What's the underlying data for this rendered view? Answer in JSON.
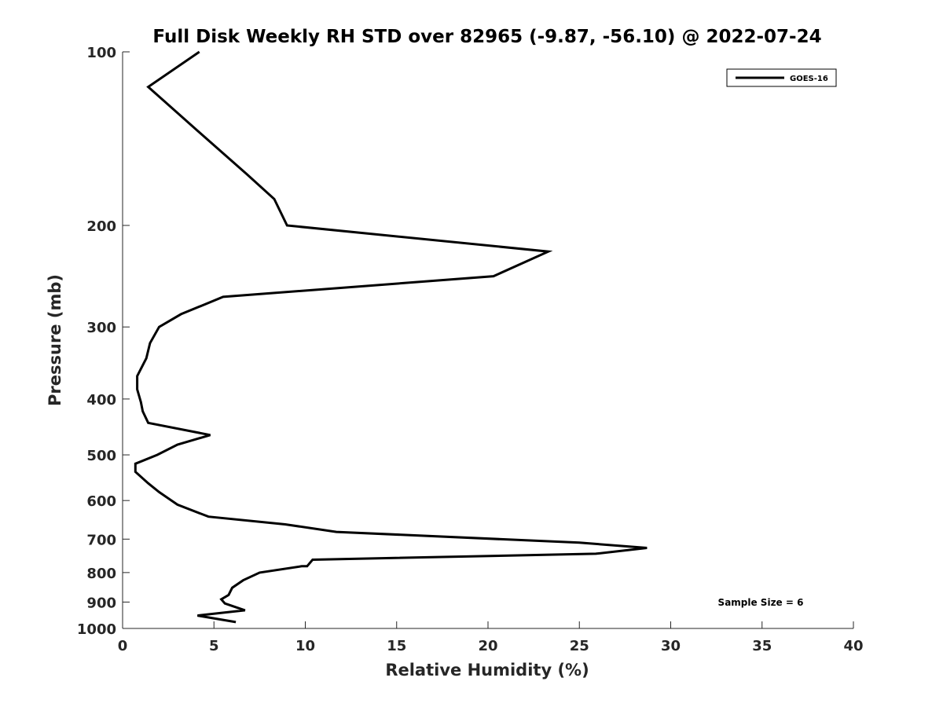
{
  "chart_data": {
    "type": "line",
    "title": "Full Disk Weekly RH STD over 82965 (-9.87, -56.10) @ 2022-07-24",
    "xlabel": "Relative Humidity (%)",
    "ylabel": "Pressure (mb)",
    "xlim": [
      0,
      40
    ],
    "ylim": [
      100,
      1000
    ],
    "y_scale": "log",
    "y_reversed": true,
    "x_ticks": [
      "0",
      "5",
      "10",
      "15",
      "20",
      "25",
      "30",
      "35",
      "40"
    ],
    "y_ticks": [
      "100",
      "200",
      "300",
      "400",
      "500",
      "600",
      "700",
      "800",
      "900",
      "1000"
    ],
    "grid": false,
    "legend_position": "top-right",
    "annotation": "Sample Size = 6",
    "series": [
      {
        "name": "GOES-16",
        "color": "#000000",
        "x": [
          4.2,
          1.4,
          4.1,
          6.8,
          8.3,
          9.0,
          23.3,
          20.3,
          5.5,
          3.2,
          2.0,
          1.5,
          1.3,
          0.8,
          0.8,
          1.0,
          1.1,
          1.4,
          4.8,
          3.0,
          1.9,
          0.7,
          0.7,
          1.4,
          2.0,
          3.0,
          4.7,
          8.9,
          11.7,
          25.0,
          28.7,
          25.9,
          10.4,
          10.1,
          9.8,
          7.5,
          6.6,
          6.0,
          5.8,
          5.4,
          5.6,
          6.7,
          4.1,
          6.2
        ],
        "y": [
          100,
          115,
          137,
          163,
          180,
          200,
          222,
          245,
          266,
          285,
          300,
          320,
          340,
          365,
          385,
          405,
          420,
          440,
          462,
          480,
          500,
          518,
          535,
          560,
          580,
          610,
          640,
          660,
          680,
          710,
          725,
          742,
          760,
          780,
          780,
          800,
          825,
          850,
          875,
          890,
          905,
          930,
          950,
          975
        ]
      }
    ]
  }
}
